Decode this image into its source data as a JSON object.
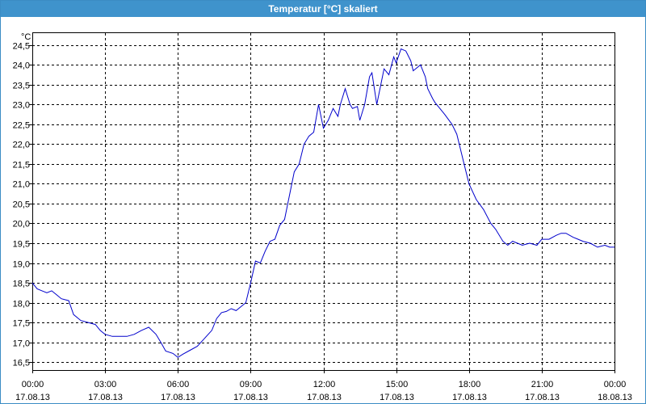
{
  "window": {
    "title": "Temperatur [°C] skaliert"
  },
  "chart_data": {
    "type": "line",
    "title": "Temperatur [°C] skaliert",
    "ylabel": "°C",
    "ylim": [
      16.3,
      24.8
    ],
    "yticks": [
      {
        "value": 16.5,
        "label": "16,5"
      },
      {
        "value": 17.0,
        "label": "17,0"
      },
      {
        "value": 17.5,
        "label": "17,5"
      },
      {
        "value": 18.0,
        "label": "18,0"
      },
      {
        "value": 18.5,
        "label": "18,5"
      },
      {
        "value": 19.0,
        "label": "19,0"
      },
      {
        "value": 19.5,
        "label": "19,5"
      },
      {
        "value": 20.0,
        "label": "20,0"
      },
      {
        "value": 20.5,
        "label": "20,5"
      },
      {
        "value": 21.0,
        "label": "21,0"
      },
      {
        "value": 21.5,
        "label": "21,5"
      },
      {
        "value": 22.0,
        "label": "22,0"
      },
      {
        "value": 22.5,
        "label": "22,5"
      },
      {
        "value": 23.0,
        "label": "23,0"
      },
      {
        "value": 23.5,
        "label": "23,5"
      },
      {
        "value": 24.0,
        "label": "24,0"
      },
      {
        "value": 24.5,
        "label": "24,5"
      }
    ],
    "xlim": [
      0,
      24
    ],
    "xticks": [
      {
        "value": 0,
        "time": "00:00",
        "date": "17.08.13"
      },
      {
        "value": 3,
        "time": "03:00",
        "date": "17.08.13"
      },
      {
        "value": 6,
        "time": "06:00",
        "date": "17.08.13"
      },
      {
        "value": 9,
        "time": "09:00",
        "date": "17.08.13"
      },
      {
        "value": 12,
        "time": "12:00",
        "date": "17.08.13"
      },
      {
        "value": 15,
        "time": "15:00",
        "date": "17.08.13"
      },
      {
        "value": 18,
        "time": "18:00",
        "date": "17.08.13"
      },
      {
        "value": 21,
        "time": "21:00",
        "date": "17.08.13"
      },
      {
        "value": 24,
        "time": "00:00",
        "date": "18.08.13"
      }
    ],
    "grid": true,
    "series": [
      {
        "color": "#0000cc",
        "x": [
          0.0,
          0.2,
          0.4,
          0.6,
          0.8,
          1.0,
          1.2,
          1.5,
          1.7,
          2.0,
          2.3,
          2.6,
          2.8,
          3.0,
          3.3,
          3.6,
          3.9,
          4.2,
          4.5,
          4.8,
          5.1,
          5.3,
          5.5,
          5.8,
          6.0,
          6.2,
          6.5,
          6.8,
          7.1,
          7.4,
          7.6,
          7.8,
          8.0,
          8.2,
          8.4,
          8.6,
          8.8,
          9.0,
          9.2,
          9.4,
          9.6,
          9.8,
          10.0,
          10.2,
          10.4,
          10.6,
          10.8,
          11.0,
          11.2,
          11.4,
          11.6,
          11.8,
          12.0,
          12.2,
          12.4,
          12.6,
          12.7,
          12.9,
          13.1,
          13.2,
          13.4,
          13.5,
          13.7,
          13.9,
          14.0,
          14.2,
          14.4,
          14.5,
          14.7,
          14.9,
          15.0,
          15.2,
          15.4,
          15.6,
          15.7,
          15.9,
          16.0,
          16.2,
          16.3,
          16.5,
          16.6,
          16.8,
          17.0,
          17.3,
          17.5,
          17.8,
          18.0,
          18.3,
          18.6,
          18.9,
          19.1,
          19.4,
          19.6,
          19.8,
          20.0,
          20.2,
          20.5,
          20.8,
          21.0,
          21.3,
          21.6,
          21.8,
          22.0,
          22.3,
          22.5,
          22.7,
          23.0,
          23.3,
          23.6,
          23.8,
          24.0
        ],
        "values": [
          18.5,
          18.35,
          18.3,
          18.25,
          18.3,
          18.2,
          18.1,
          18.05,
          17.7,
          17.55,
          17.5,
          17.45,
          17.3,
          17.2,
          17.15,
          17.15,
          17.15,
          17.2,
          17.3,
          17.38,
          17.2,
          17.0,
          16.78,
          16.72,
          16.62,
          16.7,
          16.8,
          16.9,
          17.1,
          17.3,
          17.6,
          17.75,
          17.78,
          17.85,
          17.8,
          17.9,
          18.0,
          18.5,
          19.05,
          19.0,
          19.3,
          19.55,
          19.6,
          19.95,
          20.1,
          20.7,
          21.3,
          21.5,
          22.0,
          22.2,
          22.3,
          23.0,
          22.4,
          22.6,
          22.9,
          22.7,
          23.0,
          23.4,
          23.0,
          22.9,
          22.95,
          22.6,
          23.0,
          23.7,
          23.8,
          23.0,
          23.6,
          23.9,
          23.75,
          24.2,
          24.05,
          24.4,
          24.35,
          24.1,
          23.85,
          23.95,
          24.0,
          23.7,
          23.4,
          23.15,
          23.05,
          22.9,
          22.75,
          22.5,
          22.25,
          21.5,
          21.0,
          20.6,
          20.35,
          20.0,
          19.85,
          19.55,
          19.45,
          19.55,
          19.5,
          19.45,
          19.5,
          19.45,
          19.6,
          19.6,
          19.7,
          19.75,
          19.75,
          19.65,
          19.6,
          19.55,
          19.5,
          19.4,
          19.45,
          19.4,
          19.4
        ]
      }
    ]
  }
}
